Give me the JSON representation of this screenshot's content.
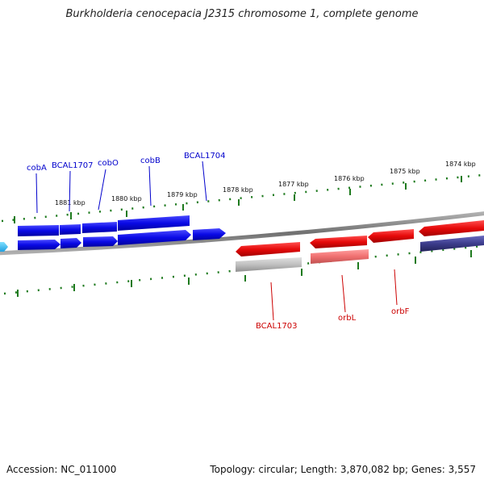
{
  "title": "Burkholderia cenocepacia J2315 chromosome 1, complete genome",
  "footer": {
    "accession": "Accession: NC_011000",
    "topology": "Topology: circular; Length: 3,870,082 bp; Genes: 3,557"
  },
  "colors": {
    "forward_gene": "#0a0ae6",
    "reverse_gene": "#e60a0a",
    "gene_label_forward": "#0000cc",
    "gene_label_reverse": "#cc0000",
    "tick": "#1e7a1e",
    "backbone": "#808080"
  },
  "scale_labels": [
    "1881 kbp",
    "1880 kbp",
    "1879 kbp",
    "1878 kbp",
    "1877 kbp",
    "1876 kbp",
    "1875 kbp",
    "1874 kbp"
  ],
  "gene_labels_forward": [
    "cobA",
    "BCAL1707",
    "cobO",
    "cobB",
    "BCAL1704"
  ],
  "gene_labels_reverse": [
    "BCAL1703",
    "orbL",
    "orbF"
  ]
}
